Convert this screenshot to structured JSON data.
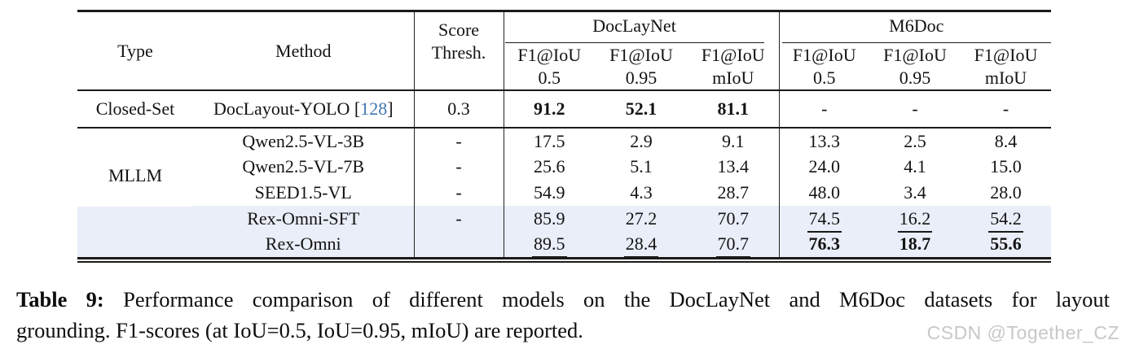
{
  "colors": {
    "highlight_row": "#eaeef8",
    "citation_blue": "#4076ad",
    "rule": "#1a1a1a",
    "watermark_gray": "#c8c8c8"
  },
  "header": {
    "type": "Type",
    "method": "Method",
    "score_line1": "Score",
    "score_line2": "Thresh.",
    "groups": [
      {
        "label": "DocLayNet"
      },
      {
        "label": "M6Doc"
      }
    ],
    "metric": "F1@IoU",
    "submetrics": [
      "0.5",
      "0.95",
      "mIoU",
      "0.5",
      "0.95",
      "mIoU"
    ]
  },
  "body": {
    "closed_set": {
      "type": "Closed-Set",
      "method": "DocLayout-YOLO",
      "cite_open": "[",
      "cite": "128",
      "cite_close": "]",
      "thresh": "0.3",
      "doclaynet": [
        "91.2",
        "52.1",
        "81.1"
      ],
      "m6doc": [
        "-",
        "-",
        "-"
      ]
    },
    "mllm_label": "MLLM",
    "mllm_rows": [
      {
        "method": "Qwen2.5-VL-3B",
        "thresh": "-",
        "doclaynet": [
          "17.5",
          "2.9",
          "9.1"
        ],
        "m6doc": [
          "13.3",
          "2.5",
          "8.4"
        ]
      },
      {
        "method": "Qwen2.5-VL-7B",
        "thresh": "-",
        "doclaynet": [
          "25.6",
          "5.1",
          "13.4"
        ],
        "m6doc": [
          "24.0",
          "4.1",
          "15.0"
        ]
      },
      {
        "method": "SEED1.5-VL",
        "thresh": "-",
        "doclaynet": [
          "54.9",
          "4.3",
          "28.7"
        ],
        "m6doc": [
          "48.0",
          "3.4",
          "28.0"
        ]
      },
      {
        "method": "Rex-Omni-SFT",
        "thresh": "-",
        "doclaynet": [
          "85.9",
          "27.2",
          "70.7"
        ],
        "m6doc": [
          "74.5",
          "16.2",
          "54.2"
        ]
      },
      {
        "method": "Rex-Omni",
        "thresh": "",
        "doclaynet": [
          "89.5",
          "28.4",
          "70.7"
        ],
        "m6doc": [
          "76.3",
          "18.7",
          "55.6"
        ]
      }
    ]
  },
  "caption": {
    "label": "Table 9:",
    "line1": "Performance comparison of different models on the DocLayNet and M6Doc datasets for layout",
    "line2": "grounding. F1-scores (at IoU=0.5, IoU=0.95, mIoU) are reported."
  },
  "watermark": "CSDN @Together_CZ"
}
